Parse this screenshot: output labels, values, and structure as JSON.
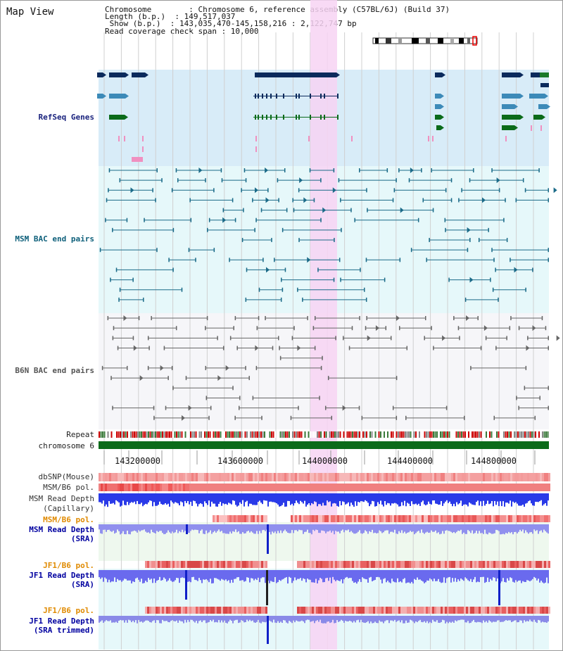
{
  "view": {
    "title": "Map View",
    "info_lines": [
      "Chromosome        : Chromosome 6, reference assembly (C57BL/6J) (Build 37)",
      "Length (b.p.)  : 149,517,037",
      " Show (b.p.)  : 143,035,470-145,158,216 : 2,122,747 bp",
      "Read coverage check span : 10,000"
    ]
  },
  "tracks": {
    "refseq": "RefSeq Genes",
    "msm_bac": "MSM BAC end pairs",
    "b6n_bac": "B6N BAC end pairs",
    "repeat": "Repeat",
    "chromosome": "chromosome 6",
    "dbsnp": "dbSNP(Mouse)",
    "msm_b6_pol": "MSM/B6 pol.",
    "msm_depth_cap_1": "MSM Read Depth",
    "msm_depth_cap_2": "(Capillary)",
    "msm_b6_pol_2": "MSM/B6 pol.",
    "msm_depth_sra_1": "MSM Read Depth",
    "msm_depth_sra_2": "(SRA)",
    "jf1_b6_pol": "JF1/B6 pol.",
    "jf1_depth_sra_1": "JF1 Read Depth",
    "jf1_depth_sra_2": "(SRA)",
    "jf1_b6_pol_2": "JF1/B6 pol.",
    "jf1_depth_trim_1": "JF1 Read Depth",
    "jf1_depth_trim_2": "(SRA trimmed)"
  },
  "axis": {
    "ticks": [
      "143200000",
      "143600000",
      "144000000",
      "144400000",
      "144800000"
    ]
  },
  "colors": {
    "refseq_label": "#1a237e",
    "msm_label": "#0d5f7a",
    "b6n_label": "#555555",
    "pol_label": "#e08a00",
    "depth_label": "#0000a0",
    "highlight": "#f7d3f3"
  }
}
